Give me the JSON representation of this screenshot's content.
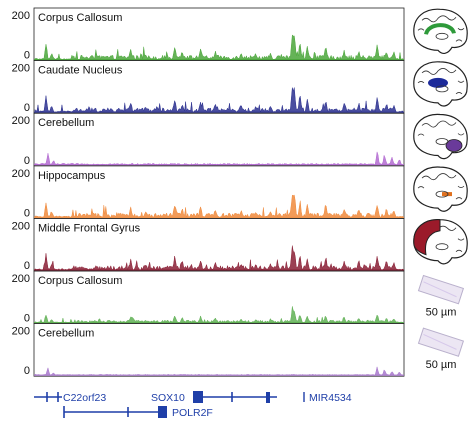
{
  "tracks": [
    {
      "title": "Corpus Callosum",
      "color": "#4aa63a",
      "icon": "brain-corpus-callosum-icon",
      "region_color": "#2e9a3a",
      "kind": "brain",
      "profile": "A"
    },
    {
      "title": "Caudate Nucleus",
      "color": "#2a2f8f",
      "icon": "brain-caudate-nucleus-icon",
      "region_color": "#1c2a9a",
      "kind": "brain",
      "profile": "A"
    },
    {
      "title": "Cerebellum",
      "color": "#b36bd1",
      "icon": "brain-cerebellum-icon",
      "region_color": "#6a3a9a",
      "kind": "brain",
      "profile": "B"
    },
    {
      "title": "Hippocampus",
      "color": "#f08a3c",
      "icon": "brain-hippocampus-icon",
      "region_color": "#e0701e",
      "kind": "brain",
      "profile": "A"
    },
    {
      "title": "Middle Frontal Gyrus",
      "color": "#8a1f35",
      "icon": "brain-middle-frontal-gyrus-icon",
      "region_color": "#9b1a2a",
      "kind": "brain",
      "profile": "A"
    },
    {
      "title": "Corpus Callosum",
      "color": "#5fb053",
      "icon": "tissue-slide-icon",
      "kind": "slide",
      "scale": "50 µm",
      "profile": "A"
    },
    {
      "title": "Cerebellum",
      "color": "#a777cc",
      "icon": "tissue-slide-icon",
      "kind": "slide",
      "scale": "50 µm",
      "profile": "B"
    }
  ],
  "y_ticks": [
    "200",
    "0"
  ],
  "genes": [
    "C22orf23",
    "SOX10",
    "MIR4534",
    "POLR2F"
  ],
  "gene_color": "#1f3fa8"
}
